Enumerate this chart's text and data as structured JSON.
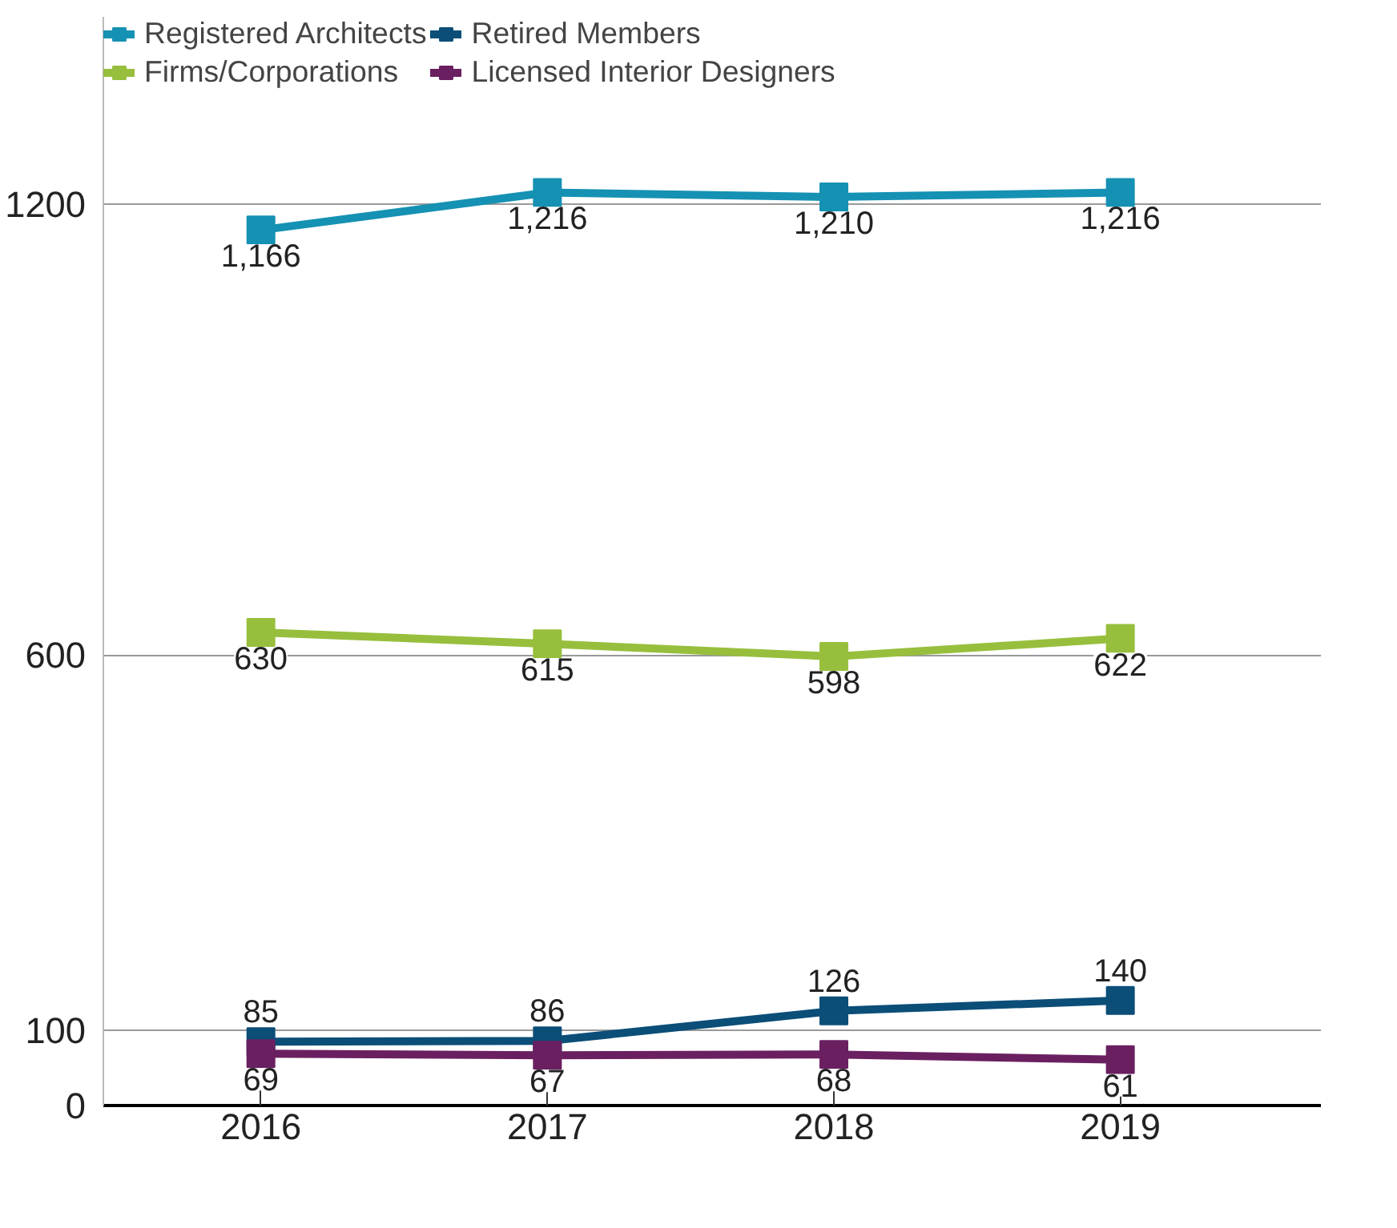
{
  "chart_data": {
    "type": "line",
    "categories": [
      "2016",
      "2017",
      "2018",
      "2019"
    ],
    "series": [
      {
        "name": "Registered Architects",
        "color": "#1591b3",
        "values": [
          1166,
          1216,
          1210,
          1216
        ],
        "value_labels": [
          "1,166",
          "1,216",
          "1,210",
          "1,216"
        ]
      },
      {
        "name": "Firms/Corporations",
        "color": "#97bf3d",
        "values": [
          630,
          615,
          598,
          622
        ],
        "value_labels": [
          "630",
          "615",
          "598",
          "622"
        ]
      },
      {
        "name": "Retired Members",
        "color": "#0b4e78",
        "values": [
          85,
          86,
          126,
          140
        ],
        "value_labels": [
          "85",
          "86",
          "126",
          "140"
        ]
      },
      {
        "name": "Licensed Interior Designers",
        "color": "#6a2060",
        "values": [
          69,
          67,
          68,
          61
        ],
        "value_labels": [
          "69",
          "67",
          "68",
          "61"
        ]
      }
    ],
    "ylim": [
      0,
      1450
    ],
    "yticks": [
      0,
      100,
      600,
      1200
    ],
    "grid": "y",
    "legend": "top left",
    "marker": "square",
    "line_style": "solid"
  }
}
